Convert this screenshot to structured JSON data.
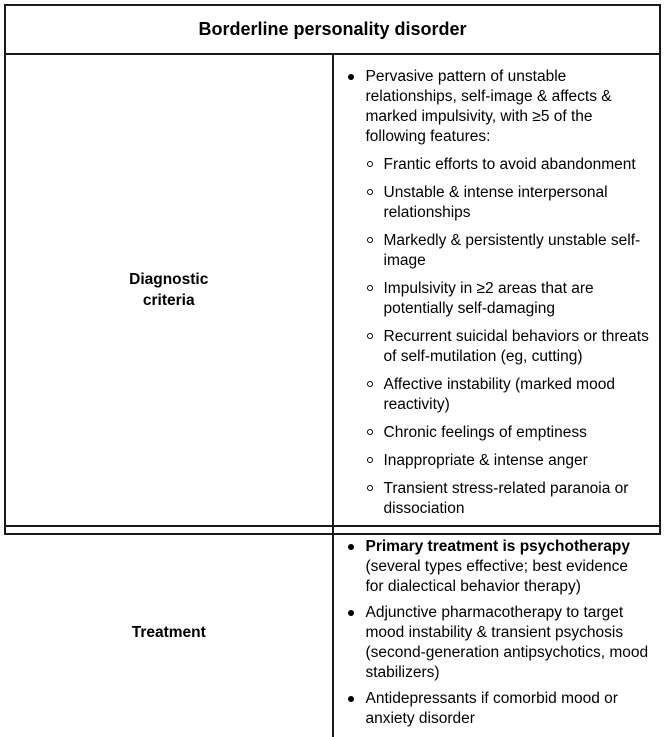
{
  "title": "Borderline personality disorder",
  "diagnostic": {
    "label": "Diagnostic criteria",
    "label_line1": "Diagnostic",
    "label_line2": "criteria",
    "intro": "Pervasive pattern of unstable relationships, self-image & affects & marked impulsivity, with ≥5 of the following features:",
    "features": [
      "Frantic efforts to avoid abandonment",
      "Unstable & intense interpersonal relationships",
      "Markedly & persistently unstable self-image",
      "Impulsivity in ≥2 areas that are potentially self-damaging",
      "Recurrent suicidal behaviors or threats of self-mutilation (eg, cutting)",
      "Affective instability (marked mood reactivity)",
      "Chronic feelings of emptiness",
      "Inappropriate & intense anger",
      "Transient stress-related paranoia or dissociation"
    ]
  },
  "treatment": {
    "label": "Treatment",
    "items": [
      {
        "bold": "Primary treatment is psychotherapy",
        "text": " (several types effective; best evidence for dialectical behavior therapy)"
      },
      {
        "bold": "",
        "text": "Adjunctive pharmacotherapy to target mood instability & transient psychosis (second-generation antipsychotics, mood stabilizers)"
      },
      {
        "bold": "",
        "text": "Antidepressants if comorbid mood or anxiety disorder"
      }
    ]
  },
  "colors": {
    "border": "#1a1a1a",
    "text": "#000000",
    "background": "#ffffff"
  },
  "icons": {
    "primary_bullet": "filled-circle-bullet-icon",
    "secondary_bullet": "hollow-circle-bullet-icon"
  }
}
